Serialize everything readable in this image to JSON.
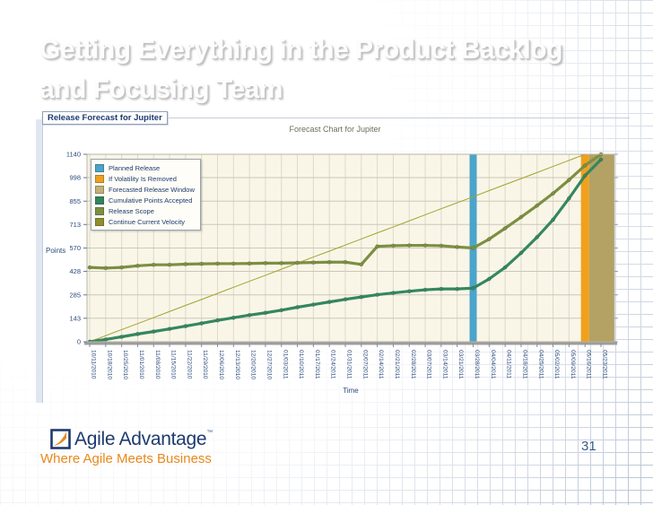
{
  "slide": {
    "title_lines": [
      "Getting Everything in the Product Backlog",
      "and Focusing Team"
    ],
    "page_number": "31"
  },
  "chart_panel": {
    "group_label": "Release Forecast for Jupiter"
  },
  "footer": {
    "brand": "Agile Advantage",
    "trademark": "™",
    "tagline": "Where Agile Meets Business",
    "brand_color": "#1e3a6e",
    "tagline_color": "#e8881c"
  },
  "chart_data": {
    "type": "line",
    "title": "Forecast Chart for Jupiter",
    "xlabel": "Time",
    "ylabel": "Points",
    "ylim": [
      0,
      1140
    ],
    "yticks": [
      0,
      143,
      285,
      428,
      570,
      713,
      855,
      998,
      1140
    ],
    "grid": true,
    "plot_bg": "#f9f6e8",
    "legend_position": "top-left",
    "x": [
      "10/11/2010",
      "10/18/2010",
      "10/25/2010",
      "11/01/2010",
      "11/08/2010",
      "11/15/2010",
      "11/22/2010",
      "11/29/2010",
      "12/06/2010",
      "12/13/2010",
      "12/20/2010",
      "12/27/2010",
      "01/03/2011",
      "01/10/2011",
      "01/17/2011",
      "01/24/2011",
      "01/31/2011",
      "02/07/2011",
      "02/14/2011",
      "02/21/2011",
      "02/28/2011",
      "03/07/2011",
      "03/14/2011",
      "03/21/2011",
      "03/28/2011",
      "04/04/2011",
      "04/11/2011",
      "04/18/2011",
      "04/25/2011",
      "05/02/2011",
      "05/09/2011",
      "05/16/2011",
      "05/23/2011"
    ],
    "series": [
      {
        "name": "Continue Current Velocity",
        "color": "#a3a32e",
        "width": 1,
        "markers": false,
        "values": [
          0,
          37,
          74,
          110,
          147,
          184,
          221,
          257,
          294,
          331,
          368,
          404,
          441,
          478,
          515,
          551,
          588,
          625,
          662,
          698,
          735,
          772,
          809,
          845,
          882,
          919,
          956,
          992,
          1029,
          1066,
          1103,
          1140,
          null
        ]
      },
      {
        "name": "Release Scope",
        "color": "#7d8f41",
        "width": 3.2,
        "markers": true,
        "values": [
          452,
          448,
          452,
          462,
          468,
          468,
          472,
          474,
          475,
          475,
          476,
          478,
          478,
          480,
          482,
          484,
          484,
          470,
          580,
          584,
          586,
          586,
          584,
          576,
          570,
          624,
          690,
          758,
          828,
          902,
          984,
          1072,
          1140
        ]
      },
      {
        "name": "Cumulative Points Accepted",
        "color": "#35875f",
        "width": 3.2,
        "markers": true,
        "values": [
          0,
          14,
          30,
          47,
          62,
          78,
          95,
          112,
          130,
          146,
          162,
          176,
          192,
          210,
          226,
          242,
          258,
          272,
          286,
          297,
          307,
          316,
          321,
          321,
          326,
          382,
          452,
          540,
          636,
          742,
          872,
          1010,
          1108
        ]
      }
    ],
    "vertical_markers": [
      {
        "name": "Planned Release",
        "date": "03/28/2011",
        "color": "#4ba4c9",
        "width": 8
      },
      {
        "name": "If Volatility Is Removed",
        "date": "05/16/2011",
        "color": "#f0a01d",
        "width": 9
      }
    ],
    "bands": [
      {
        "name": "Forecasted Release Window",
        "from": "05/16/2011",
        "to": "plot-right",
        "color": "#b3a263"
      }
    ],
    "legend": [
      {
        "label": "Planned Release",
        "color": "#4ba4c9"
      },
      {
        "label": "If Volatility Is Removed",
        "color": "#eea11f"
      },
      {
        "label": "Forecasted Release Window",
        "color": "#c2b179"
      },
      {
        "label": "Cumulative Points Accepted",
        "color": "#2f855c"
      },
      {
        "label": "Release Scope",
        "color": "#7d8f41"
      },
      {
        "label": "Continue Current Velocity",
        "color": "#8f8f2b"
      }
    ]
  }
}
